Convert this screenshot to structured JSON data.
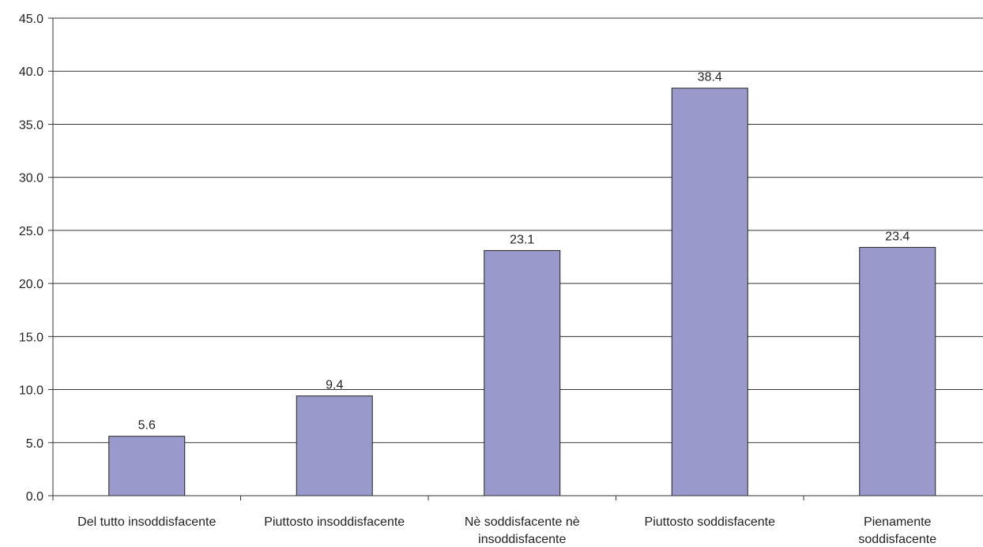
{
  "chart_data": {
    "type": "bar",
    "categories": [
      [
        "Del tutto insoddisfacente"
      ],
      [
        "Piuttosto insoddisfacente"
      ],
      [
        "Nè soddisfacente nè",
        "insoddisfacente"
      ],
      [
        "Piuttosto soddisfacente"
      ],
      [
        "Pienamente",
        "soddisfacente"
      ]
    ],
    "values": [
      5.6,
      9.4,
      23.1,
      38.4,
      23.4
    ],
    "value_labels": [
      "5.6",
      "9.4",
      "23.1",
      "38.4",
      "23.4"
    ],
    "title": "",
    "xlabel": "",
    "ylabel": "",
    "ylim": [
      0,
      45
    ],
    "yticks": [
      "0.0",
      "5.0",
      "10.0",
      "15.0",
      "20.0",
      "25.0",
      "30.0",
      "35.0",
      "40.0",
      "45.0"
    ],
    "ytick_values": [
      0,
      5,
      10,
      15,
      20,
      25,
      30,
      35,
      40,
      45
    ],
    "grid": true,
    "legend": "none",
    "colors": {
      "bar_fill": "#9999cc",
      "bar_stroke": "#222222",
      "gridline": "#333333",
      "axis": "#333333"
    }
  }
}
